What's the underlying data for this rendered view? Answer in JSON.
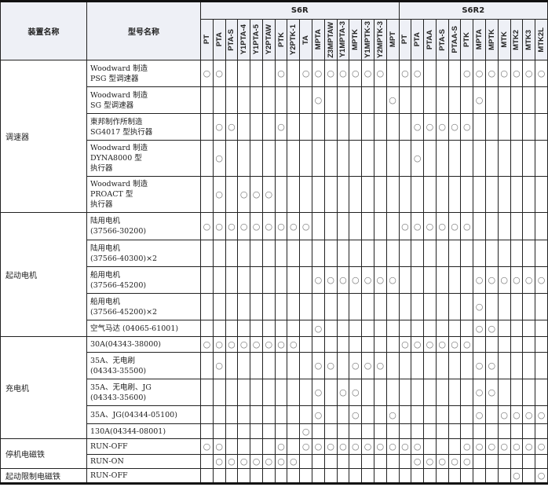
{
  "header": {
    "device": "装置名称",
    "model": "型号名称",
    "group1": "S6R",
    "group2": "S6R2",
    "s6r_cols": [
      "PT",
      "PTA",
      "PTA-S",
      "Y1PTA-4",
      "Y1PTA-5",
      "Y2PTAW",
      "PTK",
      "Y2PTK-1",
      "TA",
      "MPTA",
      "Z3MPTAW",
      "Y1MPTA-3",
      "MPTK",
      "Y1MPTK-3",
      "Y2MPTK-3",
      "MPT"
    ],
    "s6r2_cols": [
      "PT",
      "PTA",
      "PTAA",
      "PTA-S",
      "PTAA-S",
      "PTK",
      "MPTA",
      "MPTK",
      "MTK",
      "MTK2",
      "MTK3",
      "MTK2L"
    ]
  },
  "mark": "○",
  "groups": [
    {
      "name": "调速器",
      "rows": [
        {
          "model": "Woodward 制造\nPSG 型调速器",
          "s6r": [
            "PT",
            "PTA",
            "PTK",
            "TA",
            "MPTA",
            "Z3MPTAW",
            "Y1MPTA-3",
            "MPTK",
            "Y1MPTK-3",
            "Y2MPTK-3"
          ],
          "s6r2": [
            "PT",
            "PTA",
            "PTK",
            "MPTA",
            "MPTK",
            "MTK",
            "MTK2",
            "MTK3",
            "MTK2L"
          ]
        },
        {
          "model": "Woodward 制造\nSG 型调速器",
          "s6r": [
            "MPTA",
            "MPT"
          ],
          "s6r2": [
            "MPTA"
          ]
        },
        {
          "model": "東邦制作所制造\nSG4017 型执行器",
          "s6r": [
            "PTA",
            "PTA-S",
            "PTK"
          ],
          "s6r2": [
            "PTA",
            "PTAA",
            "PTA-S",
            "PTAA-S",
            "PTK"
          ]
        },
        {
          "model": "Woodward 制造\nDYNA8000 型\n执行器",
          "s6r": [
            "PTA"
          ],
          "s6r2": [
            "PTA"
          ]
        },
        {
          "model": "Woodward 制造\nPROACT 型\n执行器",
          "s6r": [
            "PTA",
            "Y1PTA-4",
            "Y1PTA-5",
            "Y2PTAW"
          ],
          "s6r2": []
        }
      ]
    },
    {
      "name": "起动电机",
      "rows": [
        {
          "model": "陆用电机\n(37566-30200)",
          "s6r": [
            "PT",
            "PTA",
            "PTA-S",
            "Y1PTA-4",
            "Y1PTA-5",
            "Y2PTAW",
            "PTK",
            "Y2PTK-1",
            "TA"
          ],
          "s6r2": [
            "PT",
            "PTA",
            "PTAA",
            "PTA-S",
            "PTAA-S",
            "PTK"
          ]
        },
        {
          "model": "陆用电机\n(37566-40300)×2",
          "s6r": [],
          "s6r2": []
        },
        {
          "model": "船用电机\n(37566-45200)",
          "s6r": [
            "MPTA",
            "Z3MPTAW",
            "Y1MPTA-3",
            "MPTK",
            "Y1MPTK-3",
            "Y2MPTK-3",
            "MPT"
          ],
          "s6r2": [
            "MPTA",
            "MPTK",
            "MTK",
            "MTK2",
            "MTK3",
            "MTK2L"
          ]
        },
        {
          "model": "船用电机\n(37566-45200)×2",
          "s6r": [],
          "s6r2": [
            "MPTA"
          ]
        },
        {
          "model": "空气马达 (04065-61001)",
          "s6r": [
            "MPTA"
          ],
          "s6r2": [
            "MPTA",
            "MPTK"
          ]
        }
      ]
    },
    {
      "name": "充电机",
      "rows": [
        {
          "model": "30A(04343-38000)",
          "s6r": [
            "PT",
            "PTA",
            "PTA-S",
            "Y1PTA-4",
            "Y1PTA-5",
            "Y2PTAW",
            "PTK",
            "Y2PTK-1"
          ],
          "s6r2": [
            "PT",
            "PTA",
            "PTAA",
            "PTA-S",
            "PTAA-S",
            "PTK"
          ]
        },
        {
          "model": "35A、无电刷\n(04343-35500)",
          "s6r": [
            "PTA",
            "MPTA",
            "Z3MPTAW",
            "MPTK",
            "Y1MPTK-3",
            "Y2MPTK-3"
          ],
          "s6r2": [
            "MPTA",
            "MPTK"
          ]
        },
        {
          "model": "35A、无电刷、JG\n(04343-35600)",
          "s6r": [
            "MPTA",
            "Y1MPTA-3",
            "MPTK"
          ],
          "s6r2": [
            "MPTA",
            "MPTK"
          ]
        },
        {
          "model": "35A、JG(04344-05100)",
          "s6r": [
            "MPTA",
            "MPTK",
            "MPT"
          ],
          "s6r2": [
            "MPTA",
            "MTK",
            "MTK2",
            "MTK3",
            "MTK2L"
          ]
        },
        {
          "model": "130A(04344-08001)",
          "s6r": [
            "TA"
          ],
          "s6r2": []
        }
      ]
    },
    {
      "name": "停机电磁铁",
      "rows": [
        {
          "model": "RUN-OFF",
          "s6r": [
            "PT",
            "PTA",
            "PTK",
            "TA",
            "MPTA",
            "Z3MPTAW",
            "Y1MPTA-3",
            "MPTK",
            "Y1MPTK-3",
            "Y2MPTK-3",
            "MPT"
          ],
          "s6r2": [
            "PT",
            "PTA",
            "PTK",
            "MPTA",
            "MPTK",
            "MTK",
            "MTK2",
            "MTK3",
            "MTK2L"
          ]
        },
        {
          "model": "RUN-ON",
          "s6r": [
            "PTA",
            "PTA-S",
            "Y1PTA-4",
            "Y1PTA-5",
            "Y2PTAW",
            "PTK",
            "Y2PTK-1"
          ],
          "s6r2": [
            "PTA",
            "PTAA",
            "PTA-S",
            "PTAA-S",
            "PTK"
          ]
        }
      ]
    },
    {
      "name": "起动限制电磁铁",
      "rows": [
        {
          "model": "RUN-OFF",
          "s6r": [],
          "s6r2": [
            "MTK2",
            "MTK2L"
          ]
        }
      ]
    }
  ]
}
